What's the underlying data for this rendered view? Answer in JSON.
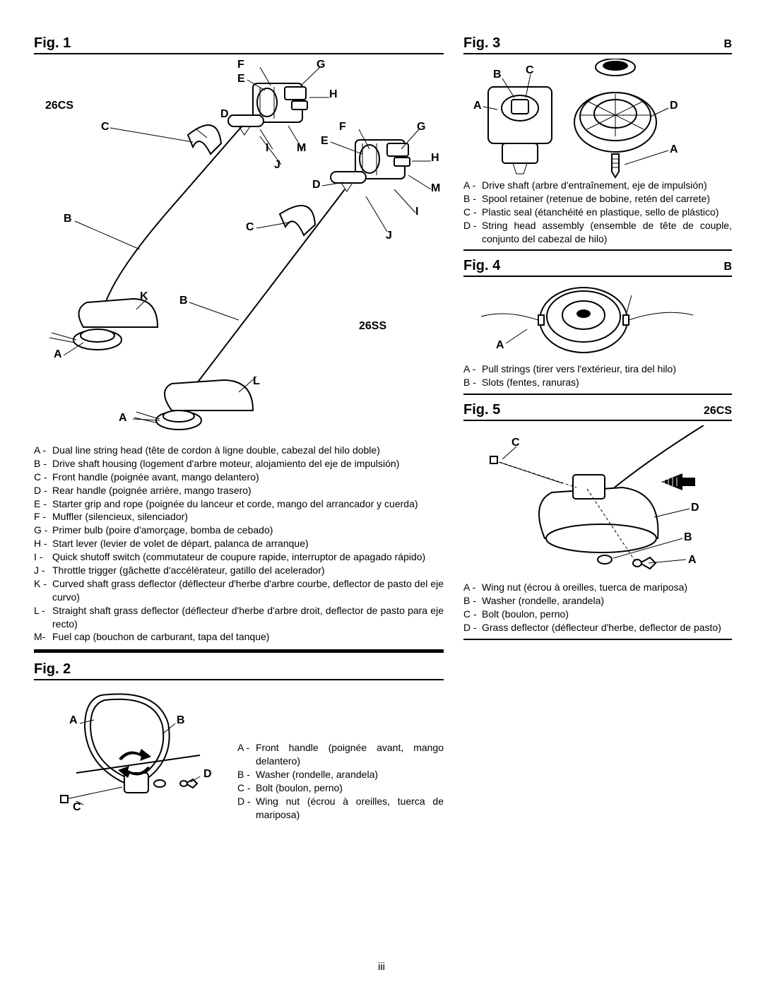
{
  "page_number": "iii",
  "fig1": {
    "title": "Fig. 1",
    "model_left": "26CS",
    "model_right": "26SS",
    "labels_cs": [
      "A",
      "B",
      "C",
      "D",
      "E",
      "F",
      "G",
      "H",
      "I",
      "J",
      "K",
      "M"
    ],
    "labels_ss": [
      "A",
      "B",
      "C",
      "D",
      "E",
      "F",
      "G",
      "H",
      "I",
      "J",
      "L",
      "M"
    ],
    "legend": [
      {
        "k": "A -",
        "t": "Dual line string head (tête de cordon à ligne double, cabezal del hilo doble)"
      },
      {
        "k": "B -",
        "t": "Drive shaft housing (logement d'arbre moteur, alojamiento del eje de impulsión)"
      },
      {
        "k": "C -",
        "t": "Front handle (poignée avant, mango delantero)"
      },
      {
        "k": "D -",
        "t": "Rear handle (poignée arrière, mango trasero)"
      },
      {
        "k": "E -",
        "t": "Starter grip and rope (poignée du lanceur et corde, mango del arrancador y cuerda)"
      },
      {
        "k": "F -",
        "t": "Muffler (silencieux, silenciador)"
      },
      {
        "k": "G -",
        "t": "Primer bulb (poire d'amorçage, bomba de cebado)"
      },
      {
        "k": "H -",
        "t": "Start lever (levier de volet de départ, palanca de arranque)"
      },
      {
        "k": "I  -",
        "t": "Quick shutoff switch (commutateur de coupure rapide, interruptor de apagado rápido)"
      },
      {
        "k": "J -",
        "t": "Throttle trigger (gâchette d'accélérateur, gatillo del acelerador)"
      },
      {
        "k": "K -",
        "t": "Curved shaft grass deflector (déflecteur d'herbe d'arbre courbe, deflector de pasto del eje curvo)"
      },
      {
        "k": "L -",
        "t": "Straight shaft grass deflector (déflecteur d'herbe d'arbre droit, deflector de pasto para eje recto)"
      },
      {
        "k": "M-",
        "t": "Fuel cap (bouchon de carburant, tapa del tanque)"
      }
    ]
  },
  "fig2": {
    "title": "Fig. 2",
    "labels": [
      "A",
      "B",
      "C",
      "D"
    ],
    "legend": [
      {
        "k": "A -",
        "t": "Front handle (poignée avant, mango delantero)"
      },
      {
        "k": "B -",
        "t": "Washer (rondelle, arandela)"
      },
      {
        "k": "C -",
        "t": "Bolt (boulon, perno)"
      },
      {
        "k": "D -",
        "t": "Wing nut (écrou à oreilles, tuerca de mariposa)"
      }
    ]
  },
  "fig3": {
    "title": "Fig. 3",
    "labels": [
      "A",
      "B",
      "C",
      "D"
    ],
    "legend": [
      {
        "k": "A -",
        "t": "Drive shaft (arbre d'entraînement, eje de impulsión)"
      },
      {
        "k": "B -",
        "t": "Spool retainer (retenue de bobine, retén del carrete)"
      },
      {
        "k": "C -",
        "t": "Plastic seal (étanchéité en plastique, sello de plástico)"
      },
      {
        "k": "D -",
        "t": "String head assembly (ensemble de tête de couple, conjunto del cabezal de hilo)"
      }
    ]
  },
  "fig4": {
    "title": "Fig. 4",
    "labels": [
      "A",
      "B"
    ],
    "legend": [
      {
        "k": "A -",
        "t": "Pull strings (tirer vers l'extérieur, tira del hilo)"
      },
      {
        "k": "B -",
        "t": "Slots (fentes, ranuras)"
      }
    ]
  },
  "fig5": {
    "title": "Fig. 5",
    "sub": "26CS",
    "labels": [
      "A",
      "B",
      "C",
      "D"
    ],
    "legend": [
      {
        "k": "A -",
        "t": "Wing nut (écrou à oreilles, tuerca de mariposa)"
      },
      {
        "k": "B -",
        "t": "Washer (rondelle, arandela)"
      },
      {
        "k": "C -",
        "t": "Bolt (boulon, perno)"
      },
      {
        "k": "D -",
        "t": "Grass deflector (déflecteur d'herbe, deflector de pasto)"
      }
    ]
  }
}
